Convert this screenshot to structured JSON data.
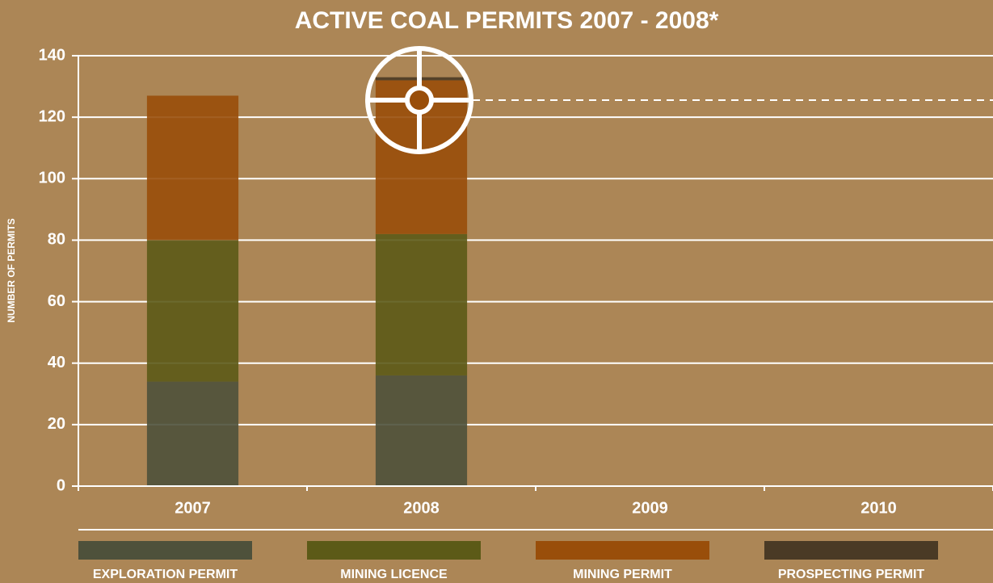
{
  "chart_data": {
    "type": "stacked_bar",
    "title": "ACTIVE COAL PERMITS 2007 - 2008*",
    "y_label": "NUMBER OF PERMITS",
    "categories": [
      "2007",
      "2008",
      "2009",
      "2010"
    ],
    "series": [
      {
        "name": "EXPLORATION PERMIT",
        "color": "#4e513b",
        "values": [
          34,
          36,
          null,
          null
        ]
      },
      {
        "name": "MINING LICENCE",
        "color": "#5c5a17",
        "values": [
          46,
          46,
          null,
          null
        ]
      },
      {
        "name": "MINING PERMIT",
        "color": "#994e0a",
        "values": [
          47,
          50,
          null,
          null
        ]
      },
      {
        "name": "PROSPECTING PERMIT",
        "color": "#4a3a25",
        "values": [
          0,
          1,
          null,
          null
        ]
      }
    ],
    "ylim": [
      0,
      140
    ],
    "yticks": [
      0,
      20,
      40,
      60,
      80,
      100,
      120,
      140
    ],
    "grid": true,
    "legend": "bottom"
  }
}
